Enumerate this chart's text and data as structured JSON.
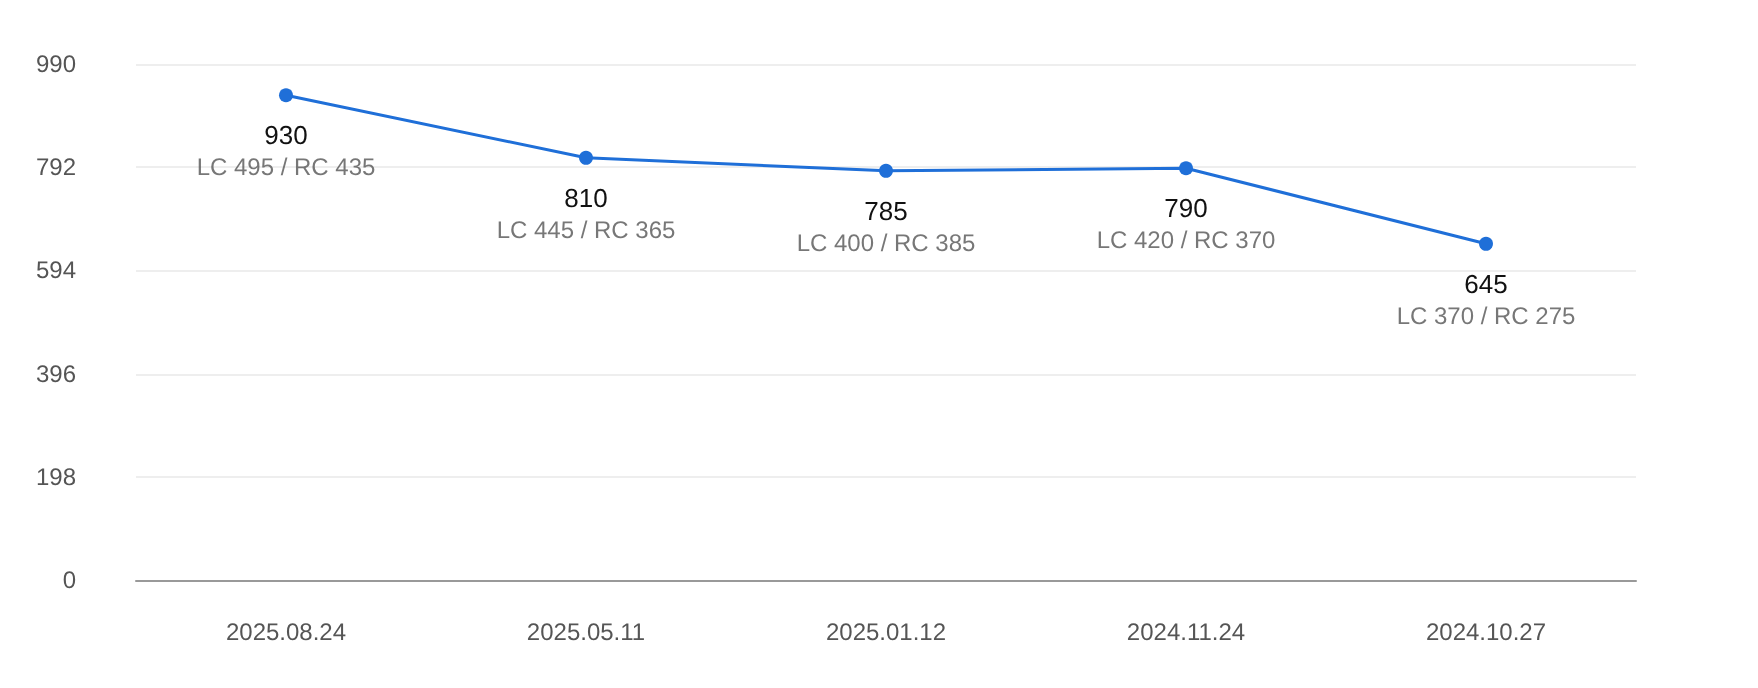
{
  "chart_data": {
    "type": "line",
    "categories": [
      "2025.08.24",
      "2025.05.11",
      "2025.01.12",
      "2024.11.24",
      "2024.10.27"
    ],
    "series": [
      {
        "color": "#1f6fd8",
        "values": [
          930,
          810,
          785,
          790,
          645
        ]
      }
    ],
    "ylim": [
      0,
      990
    ],
    "yticks": [
      0,
      198,
      396,
      594,
      792,
      990
    ],
    "grid": "y",
    "marker": "circle",
    "data_labels": true,
    "annotations": [
      {
        "text": "LC 495 / RC 435",
        "x": "2025.08.24",
        "y": 930
      },
      {
        "text": "LC 445 / RC 365",
        "x": "2025.05.11",
        "y": 810
      },
      {
        "text": "LC 400 / RC 385",
        "x": "2025.01.12",
        "y": 785
      },
      {
        "text": "LC 420 / RC 370",
        "x": "2024.11.24",
        "y": 790
      },
      {
        "text": "LC 370 / RC 275",
        "x": "2024.10.27",
        "y": 645
      }
    ]
  }
}
